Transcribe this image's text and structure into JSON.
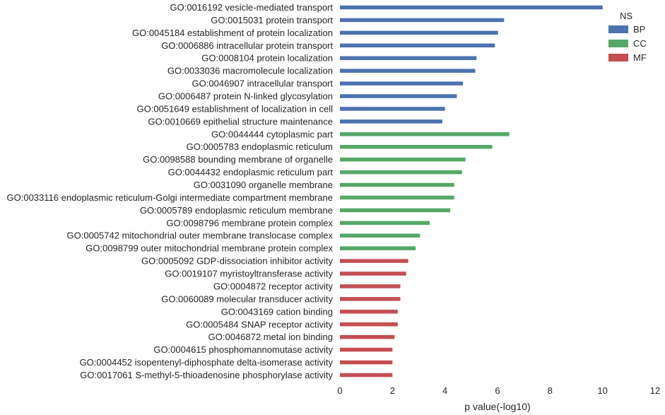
{
  "chart_data": {
    "type": "bar",
    "orientation": "horizontal",
    "xlabel": "p value(-log10)",
    "ylabel": "",
    "xlim": [
      0,
      12
    ],
    "xticks": [
      0,
      2,
      4,
      6,
      8,
      10,
      12
    ],
    "grid": false,
    "legend": {
      "title": "NS",
      "position": "top-right",
      "entries": [
        "BP",
        "CC",
        "MF"
      ]
    },
    "colors": {
      "BP": "#4c72b0",
      "CC": "#55a868",
      "MF": "#c44e52"
    },
    "categories": [
      "GO:0016192 vesicle-mediated transport",
      "GO:0015031 protein transport",
      "GO:0045184 establishment of protein localization",
      "GO:0006886 intracellular protein transport",
      "GO:0008104 protein localization",
      "GO:0033036 macromolecule localization",
      "GO:0046907 intracellular transport",
      "GO:0006487 protein N-linked glycosylation",
      "GO:0051649 establishment of localization in cell",
      "GO:0010669 epithelial structure maintenance",
      "GO:0044444 cytoplasmic part",
      "GO:0005783 endoplasmic reticulum",
      "GO:0098588 bounding membrane of organelle",
      "GO:0044432 endoplasmic reticulum part",
      "GO:0031090 organelle membrane",
      "GO:0033116 endoplasmic reticulum-Golgi intermediate compartment membrane",
      "GO:0005789 endoplasmic reticulum membrane",
      "GO:0098796 membrane protein complex",
      "GO:0005742 mitochondrial outer membrane translocase complex",
      "GO:0098799 outer mitochondrial membrane protein complex",
      "GO:0005092 GDP-dissociation inhibitor activity",
      "GO:0019107 myristoyltransferase activity",
      "GO:0004872 receptor activity",
      "GO:0060089 molecular transducer activity",
      "GO:0043169 cation binding",
      "GO:0005484 SNAP receptor activity",
      "GO:0046872 metal ion binding",
      "GO:0004615 phosphomannomutase activity",
      "GO:0004452 isopentenyl-diphosphate delta-isomerase activity",
      "GO:0017061 S-methyl-5-thioadenosine phosphorylase activity"
    ],
    "groups": [
      "BP",
      "BP",
      "BP",
      "BP",
      "BP",
      "BP",
      "BP",
      "BP",
      "BP",
      "BP",
      "CC",
      "CC",
      "CC",
      "CC",
      "CC",
      "CC",
      "CC",
      "CC",
      "CC",
      "CC",
      "MF",
      "MF",
      "MF",
      "MF",
      "MF",
      "MF",
      "MF",
      "MF",
      "MF",
      "MF"
    ],
    "values": [
      10.0,
      6.25,
      6.02,
      5.9,
      5.2,
      5.15,
      4.68,
      4.45,
      4.0,
      3.9,
      6.45,
      5.8,
      4.78,
      4.65,
      4.35,
      4.35,
      4.2,
      3.42,
      3.05,
      2.88,
      2.6,
      2.52,
      2.3,
      2.3,
      2.2,
      2.2,
      2.08,
      2.0,
      2.0,
      2.0
    ]
  }
}
